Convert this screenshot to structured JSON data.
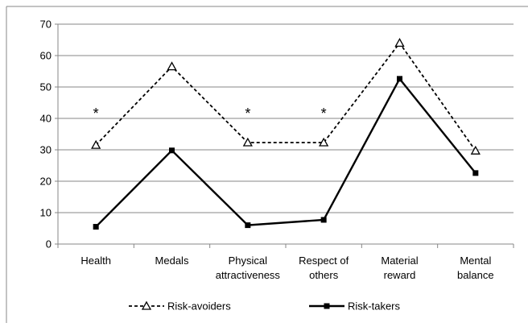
{
  "chart_data": {
    "type": "line",
    "title": "",
    "xlabel": "",
    "ylabel": "",
    "categories": [
      [
        "Health"
      ],
      [
        "Medals"
      ],
      [
        "Physical",
        "attractiveness"
      ],
      [
        "Respect of",
        "others"
      ],
      [
        "Material",
        "reward"
      ],
      [
        "Mental",
        "balance"
      ]
    ],
    "series": [
      {
        "name": "Risk-avoiders",
        "values": [
          31.5,
          56.5,
          32.3,
          32.3,
          64,
          29.7
        ],
        "style": "dashed",
        "marker": "triangle-open",
        "color": "#000000"
      },
      {
        "name": "Risk-takers",
        "values": [
          5.5,
          29.8,
          6,
          7.7,
          52.6,
          22.6
        ],
        "style": "solid",
        "marker": "square-filled",
        "color": "#000000"
      }
    ],
    "ylim": [
      0,
      70
    ],
    "yticks": [
      "0",
      "10",
      "20",
      "30",
      "40",
      "50",
      "60",
      "70"
    ],
    "yticks_values": [
      0,
      10,
      20,
      30,
      40,
      50,
      60,
      70
    ],
    "grid": "horizontal",
    "grid_color": "#878787",
    "legend_position": "bottom",
    "annotations": [
      {
        "text": "*",
        "category_index": 0,
        "y": 41
      },
      {
        "text": "*",
        "category_index": 2,
        "y": 41
      },
      {
        "text": "*",
        "category_index": 3,
        "y": 41
      }
    ]
  }
}
